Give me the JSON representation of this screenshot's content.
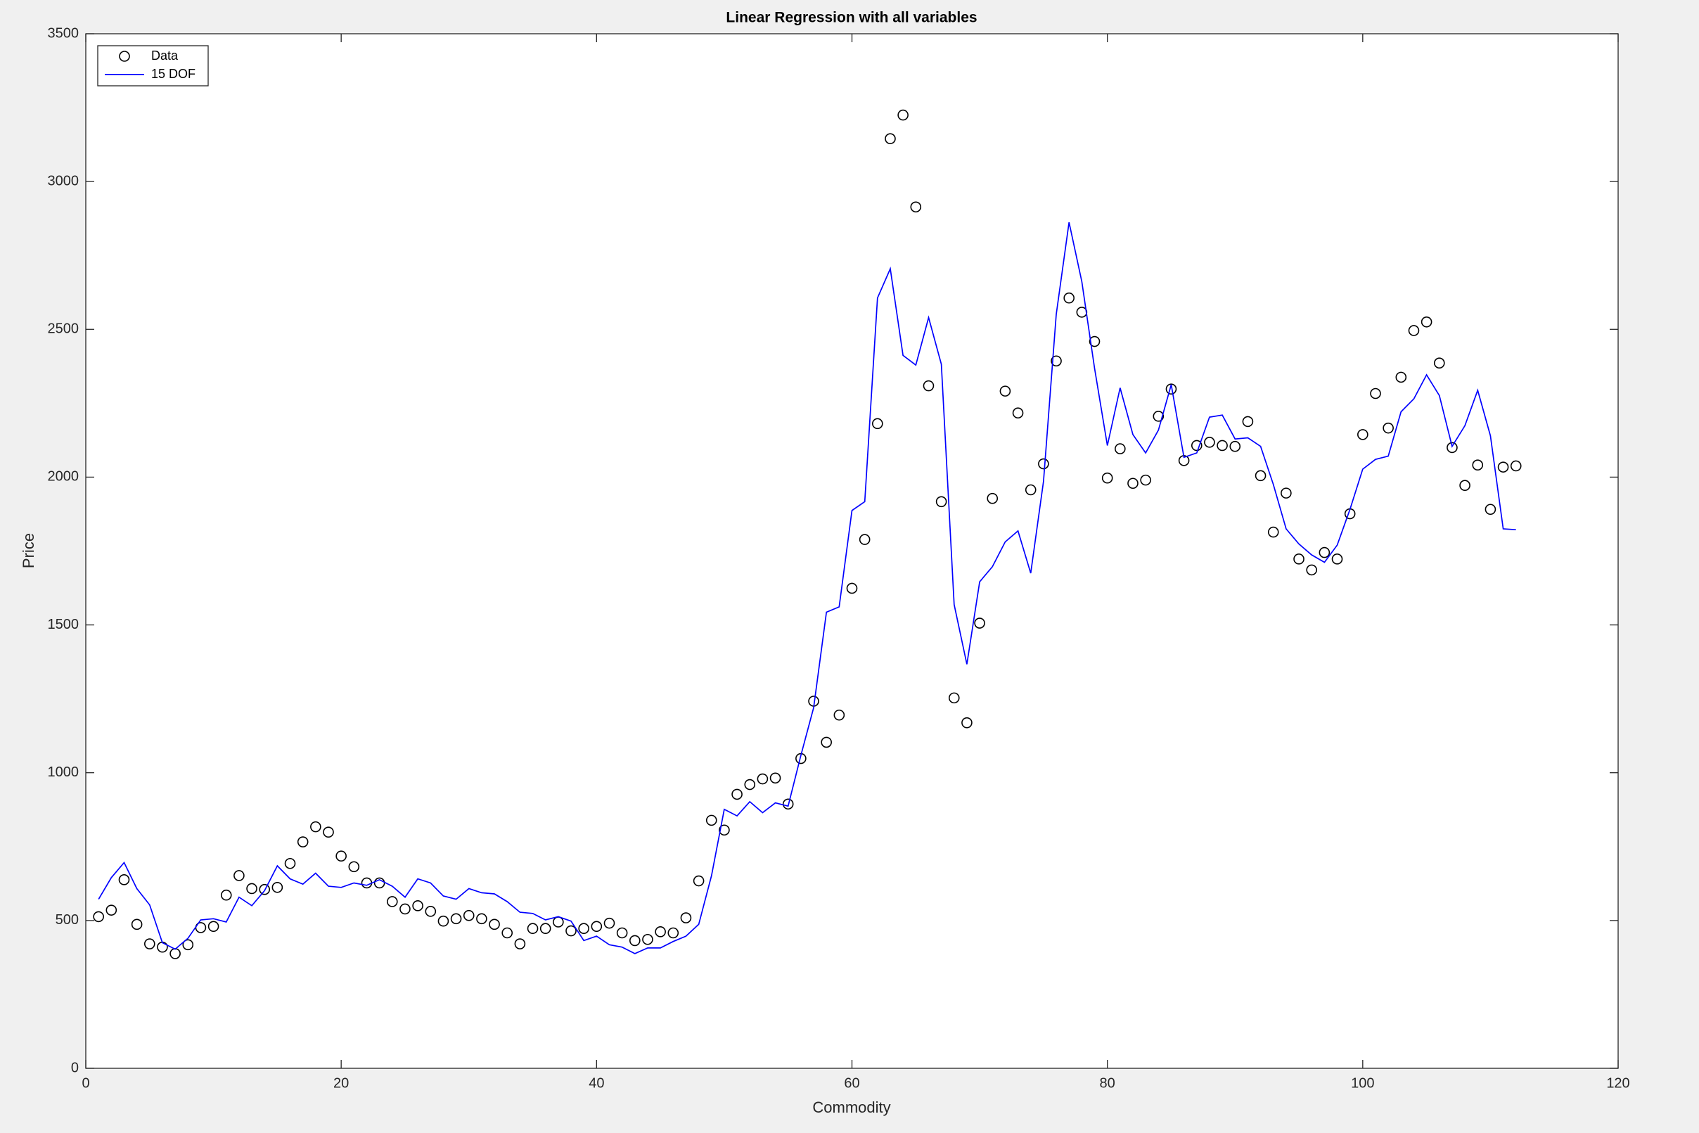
{
  "chart_data": {
    "type": "line",
    "title": "Linear Regression with all variables",
    "x_label": "Commodity",
    "y_label": "Price",
    "x": [
      1,
      2,
      3,
      4,
      5,
      6,
      7,
      8,
      9,
      10,
      11,
      12,
      13,
      14,
      15,
      16,
      17,
      18,
      19,
      20,
      21,
      22,
      23,
      24,
      25,
      26,
      27,
      28,
      29,
      30,
      31,
      32,
      33,
      34,
      35,
      36,
      37,
      38,
      39,
      40,
      41,
      42,
      43,
      44,
      45,
      46,
      47,
      48,
      49,
      50,
      51,
      52,
      53,
      54,
      55,
      56,
      57,
      58,
      59,
      60,
      61,
      62,
      63,
      64,
      65,
      66,
      67,
      68,
      69,
      70,
      71,
      72,
      73,
      74,
      75,
      76,
      77,
      78,
      79,
      80,
      81,
      82,
      83,
      84,
      85,
      86,
      87,
      88,
      89,
      90,
      91,
      92,
      93,
      94,
      95,
      96,
      97,
      98,
      99,
      100,
      101,
      102,
      103,
      104,
      105,
      106,
      107,
      108,
      109,
      110,
      111,
      112
    ],
    "series": [
      {
        "name": "Data",
        "style": "scatter",
        "color": "#000000",
        "values": [
          513,
          535,
          638,
          487,
          421,
          410,
          388,
          418,
          476,
          480,
          586,
          652,
          608,
          605,
          612,
          693,
          766,
          817,
          799,
          718,
          682,
          627,
          627,
          564,
          539,
          550,
          531,
          498,
          506,
          517,
          506,
          487,
          458,
          421,
          473,
          473,
          495,
          465,
          473,
          480,
          491,
          458,
          432,
          436,
          462,
          458,
          509,
          634,
          839,
          806,
          927,
          960,
          979,
          982,
          894,
          1048,
          1242,
          1103,
          1195,
          1624,
          1789,
          2181,
          3145,
          3225,
          2914,
          2309,
          1917,
          1253,
          1169,
          1506,
          1928,
          2291,
          2217,
          1957,
          2045,
          2393,
          2606,
          2558,
          2459,
          1997,
          2096,
          1979,
          1990,
          2206,
          2298,
          2056,
          2107,
          2118,
          2107,
          2104,
          2188,
          2005,
          1814,
          1946,
          1723,
          1686,
          1745,
          1723,
          1876,
          2144,
          2283,
          2166,
          2338,
          2496,
          2525,
          2386,
          2100,
          1972,
          2041,
          1891,
          2034,
          2038
        ]
      },
      {
        "name": "15 DOF",
        "style": "line",
        "color": "#0000ff",
        "values": [
          572,
          645,
          696,
          608,
          553,
          425,
          403,
          440,
          502,
          506,
          495,
          579,
          550,
          601,
          685,
          641,
          623,
          660,
          616,
          612,
          627,
          619,
          638,
          616,
          579,
          641,
          627,
          583,
          572,
          608,
          594,
          590,
          564,
          528,
          524,
          502,
          513,
          498,
          432,
          447,
          418,
          410,
          388,
          407,
          407,
          429,
          447,
          487,
          652,
          876,
          854,
          902,
          865,
          898,
          887,
          1059,
          1220,
          1543,
          1561,
          1887,
          1917,
          2606,
          2705,
          2412,
          2379,
          2540,
          2382,
          1569,
          1367,
          1646,
          1697,
          1781,
          1818,
          1675,
          1986,
          2551,
          2862,
          2661,
          2368,
          2107,
          2302,
          2144,
          2082,
          2159,
          2313,
          2067,
          2082,
          2203,
          2210,
          2129,
          2133,
          2104,
          1975,
          1825,
          1774,
          1737,
          1712,
          1770,
          1891,
          2027,
          2060,
          2071,
          2221,
          2265,
          2346,
          2276,
          2104,
          2174,
          2294,
          2140,
          1825,
          1822
        ]
      }
    ],
    "xlim": [
      0,
      120
    ],
    "xticks": [
      0,
      20,
      40,
      60,
      80,
      100,
      120
    ],
    "ylim": [
      0,
      3500
    ],
    "yticks": [
      0,
      500,
      1000,
      1500,
      2000,
      2500,
      3000,
      3500
    ],
    "grid": false,
    "legend": "northwest"
  }
}
